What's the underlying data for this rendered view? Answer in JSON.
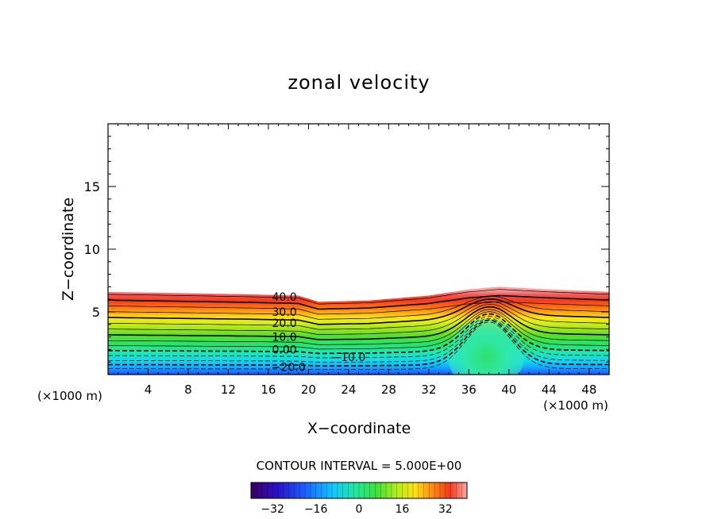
{
  "chart_data": {
    "type": "contour",
    "title": "zonal velocity",
    "xlabel": "X−coordinate",
    "ylabel": "Z−coordinate",
    "x_unit_left": "(×1000 m)",
    "x_unit_right": "(×1000 m)",
    "xlim": [
      0,
      50
    ],
    "ylim": [
      0,
      20
    ],
    "x_ticks": [
      "4",
      "8",
      "12",
      "16",
      "20",
      "24",
      "28",
      "32",
      "36",
      "40",
      "44",
      "48"
    ],
    "y_ticks": [
      "5",
      "10",
      "15"
    ],
    "contour_interval_text": "CONTOUR INTERVAL = 5.000E+00",
    "contour_interval": 5,
    "contour_labels": [
      {
        "text": "40.0",
        "x": 17.6,
        "z": 6.2
      },
      {
        "text": "30.0",
        "x": 17.6,
        "z": 5.0
      },
      {
        "text": "20.0",
        "x": 17.6,
        "z": 4.1
      },
      {
        "text": "10.0",
        "x": 17.6,
        "z": 3.0
      },
      {
        "text": "0.00",
        "x": 17.6,
        "z": 2.0
      },
      {
        "text": "−10.0",
        "x": 24.0,
        "z": 1.4
      },
      {
        "text": "−20.0",
        "x": 18.0,
        "z": 0.6
      }
    ],
    "upper_boundary": [
      [
        0,
        6.6
      ],
      [
        14,
        6.4
      ],
      [
        19,
        6.3
      ],
      [
        21,
        5.8
      ],
      [
        26,
        5.9
      ],
      [
        32,
        6.3
      ],
      [
        36,
        6.8
      ],
      [
        39,
        7.0
      ],
      [
        44,
        6.8
      ],
      [
        50,
        6.6
      ]
    ],
    "colorbar": {
      "min": -40,
      "max": 40,
      "ticks": [
        "−32",
        "−16",
        "0",
        "16",
        "32"
      ],
      "tick_values": [
        -32,
        -16,
        0,
        16,
        32
      ]
    }
  }
}
